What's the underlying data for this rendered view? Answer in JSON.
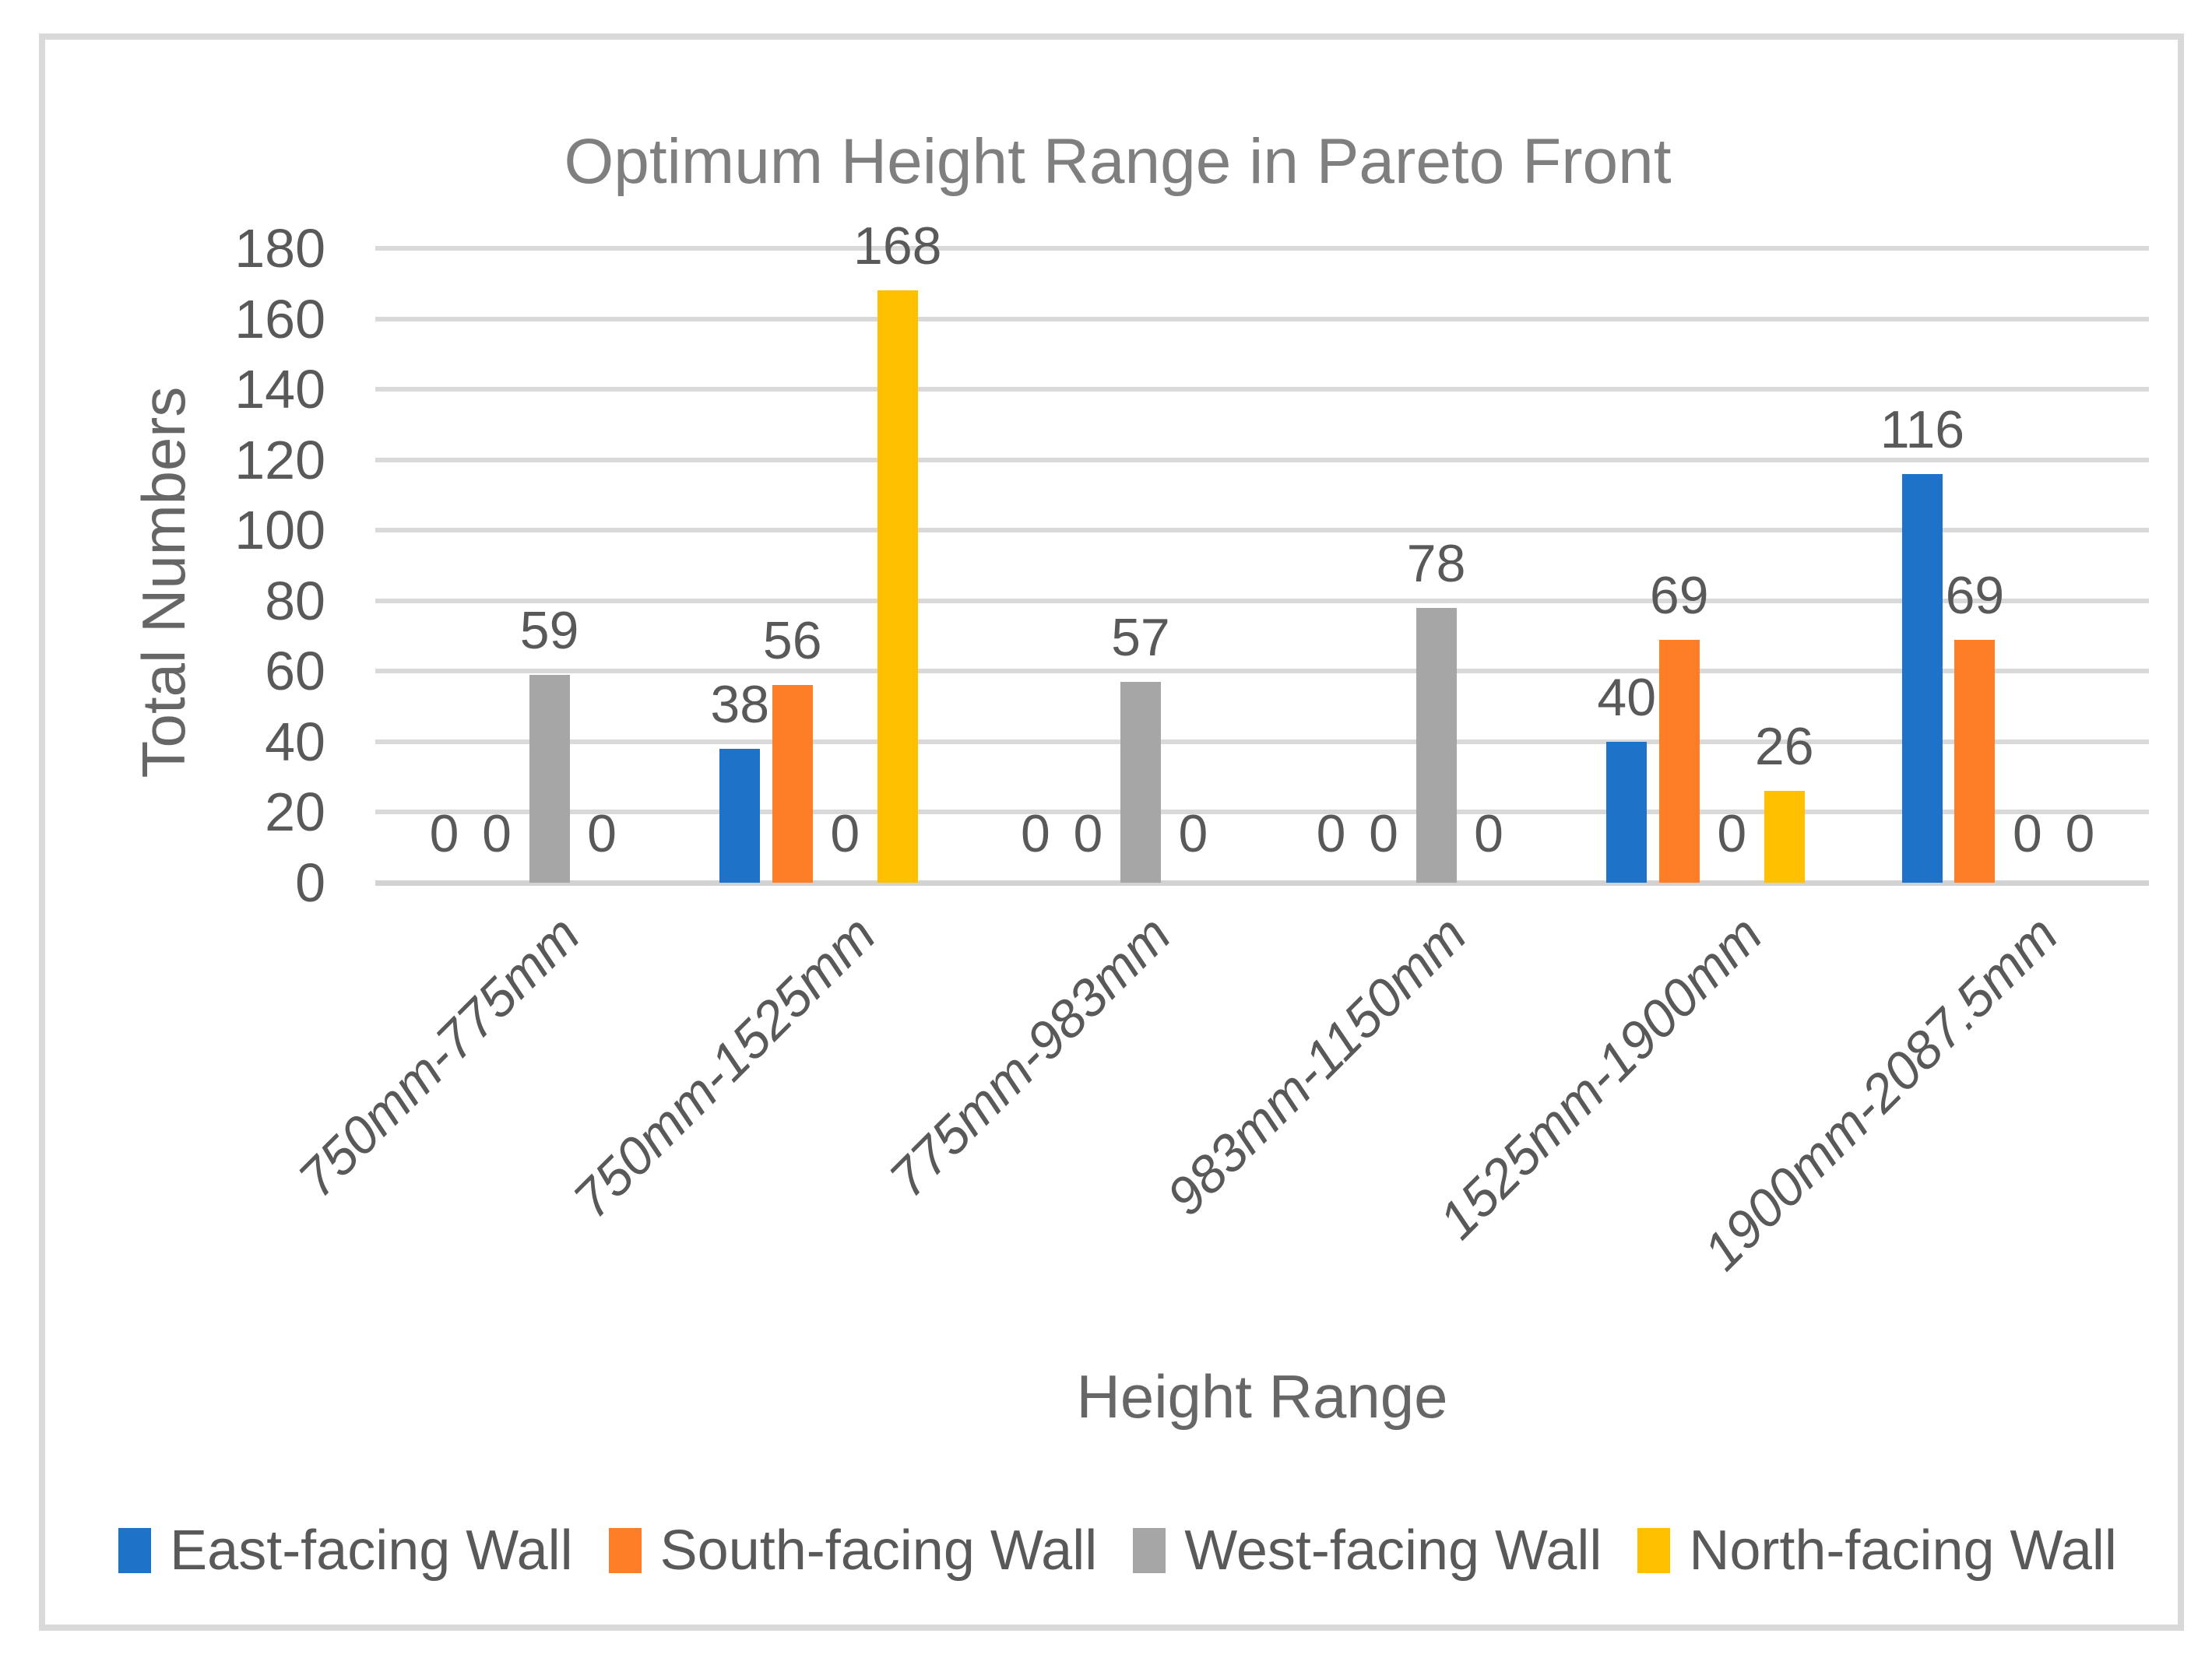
{
  "chart_data": {
    "type": "bar",
    "title": "Optimum Height Range in Pareto Front",
    "xlabel": "Height Range",
    "ylabel": "Total Numbers",
    "ylim": [
      0,
      180
    ],
    "ytick_step": 20,
    "grid": true,
    "data_labels": true,
    "legend_position": "bottom",
    "categories": [
      "750mm-775mm",
      "750mm-1525mm",
      "775mm-983mm",
      "983mm-1150mm",
      "1525mm-1900mm",
      "1900mm-2087.5mm"
    ],
    "series": [
      {
        "name": "East-facing Wall",
        "color": "#1E73C8",
        "values": [
          0,
          38,
          0,
          0,
          40,
          116
        ]
      },
      {
        "name": "South-facing Wall",
        "color": "#FD7E27",
        "values": [
          0,
          56,
          0,
          0,
          69,
          69
        ]
      },
      {
        "name": "West-facing Wall",
        "color": "#A6A6A6",
        "values": [
          59,
          0,
          57,
          78,
          0,
          0
        ]
      },
      {
        "name": "North-facing Wall",
        "color": "#FFC000",
        "values": [
          0,
          168,
          0,
          0,
          26,
          0
        ]
      }
    ]
  },
  "style_colors": {
    "gridline": "#D9D9D9",
    "frame_border": "#D9D9D9",
    "tick_text": "#595959",
    "title_text": "#7F7F7F"
  }
}
